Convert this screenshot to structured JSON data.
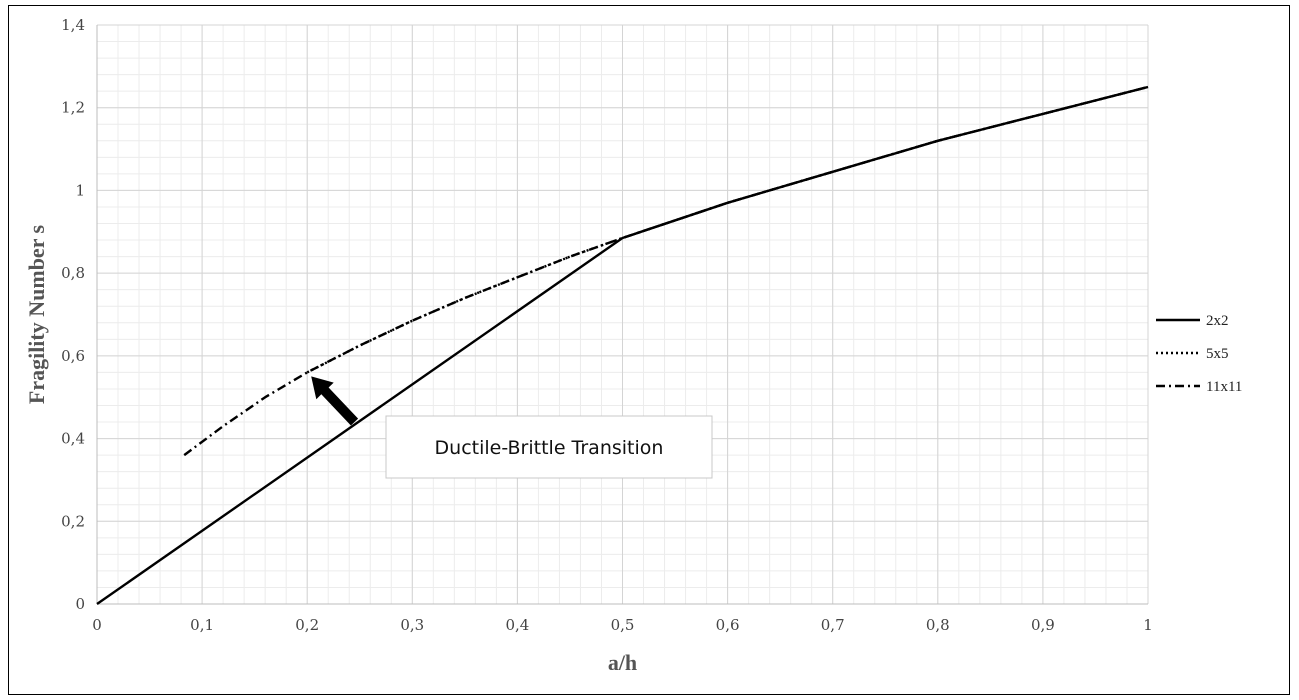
{
  "chart_data": {
    "type": "line",
    "xlabel": "a/h",
    "ylabel": "Fragility Number s",
    "xlim": [
      0,
      1
    ],
    "ylim": [
      0,
      1.4
    ],
    "x_ticks": [
      0,
      0.1,
      0.2,
      0.3,
      0.4,
      0.5,
      0.6,
      0.7,
      0.8,
      0.9,
      1
    ],
    "x_tick_labels": [
      "0",
      "0,1",
      "0,2",
      "0,3",
      "0,4",
      "0,5",
      "0,6",
      "0,7",
      "0,8",
      "0,9",
      "1"
    ],
    "y_ticks": [
      0,
      0.2,
      0.4,
      0.6,
      0.8,
      1,
      1.2,
      1.4
    ],
    "y_tick_labels": [
      "0",
      "0,2",
      "0,4",
      "0,6",
      "0,8",
      "1",
      "1,2",
      "1,4"
    ],
    "grid": true,
    "legend_position": "right",
    "series": [
      {
        "name": "2x2",
        "style": "solid",
        "color": "#000000",
        "x": [
          0,
          0.5,
          0.6,
          0.7,
          0.8,
          0.9,
          1.0
        ],
        "y": [
          0,
          0.885,
          0.97,
          1.045,
          1.12,
          1.185,
          1.25
        ]
      },
      {
        "name": "5x5",
        "style": "dotted",
        "color": "#000000",
        "x": [
          0.2,
          0.25,
          0.3,
          0.35,
          0.4,
          0.45,
          0.5,
          0.6,
          0.7,
          0.8,
          0.9,
          1.0
        ],
        "y": [
          0.56,
          0.625,
          0.685,
          0.74,
          0.79,
          0.84,
          0.885,
          0.97,
          1.045,
          1.12,
          1.185,
          1.25
        ]
      },
      {
        "name": "11x11",
        "style": "dashdot",
        "color": "#000000",
        "x": [
          0.083,
          0.12,
          0.16,
          0.2,
          0.25,
          0.3,
          0.35,
          0.4,
          0.45,
          0.5,
          0.6,
          0.7,
          0.8,
          0.9,
          1.0
        ],
        "y": [
          0.36,
          0.43,
          0.5,
          0.56,
          0.625,
          0.685,
          0.74,
          0.79,
          0.84,
          0.885,
          0.97,
          1.045,
          1.12,
          1.185,
          1.25
        ]
      }
    ],
    "annotation": {
      "text": "Ductile-Brittle Transition",
      "arrow_to": [
        0.2,
        0.56
      ],
      "arrow_from": [
        0.245,
        0.44
      ]
    }
  }
}
